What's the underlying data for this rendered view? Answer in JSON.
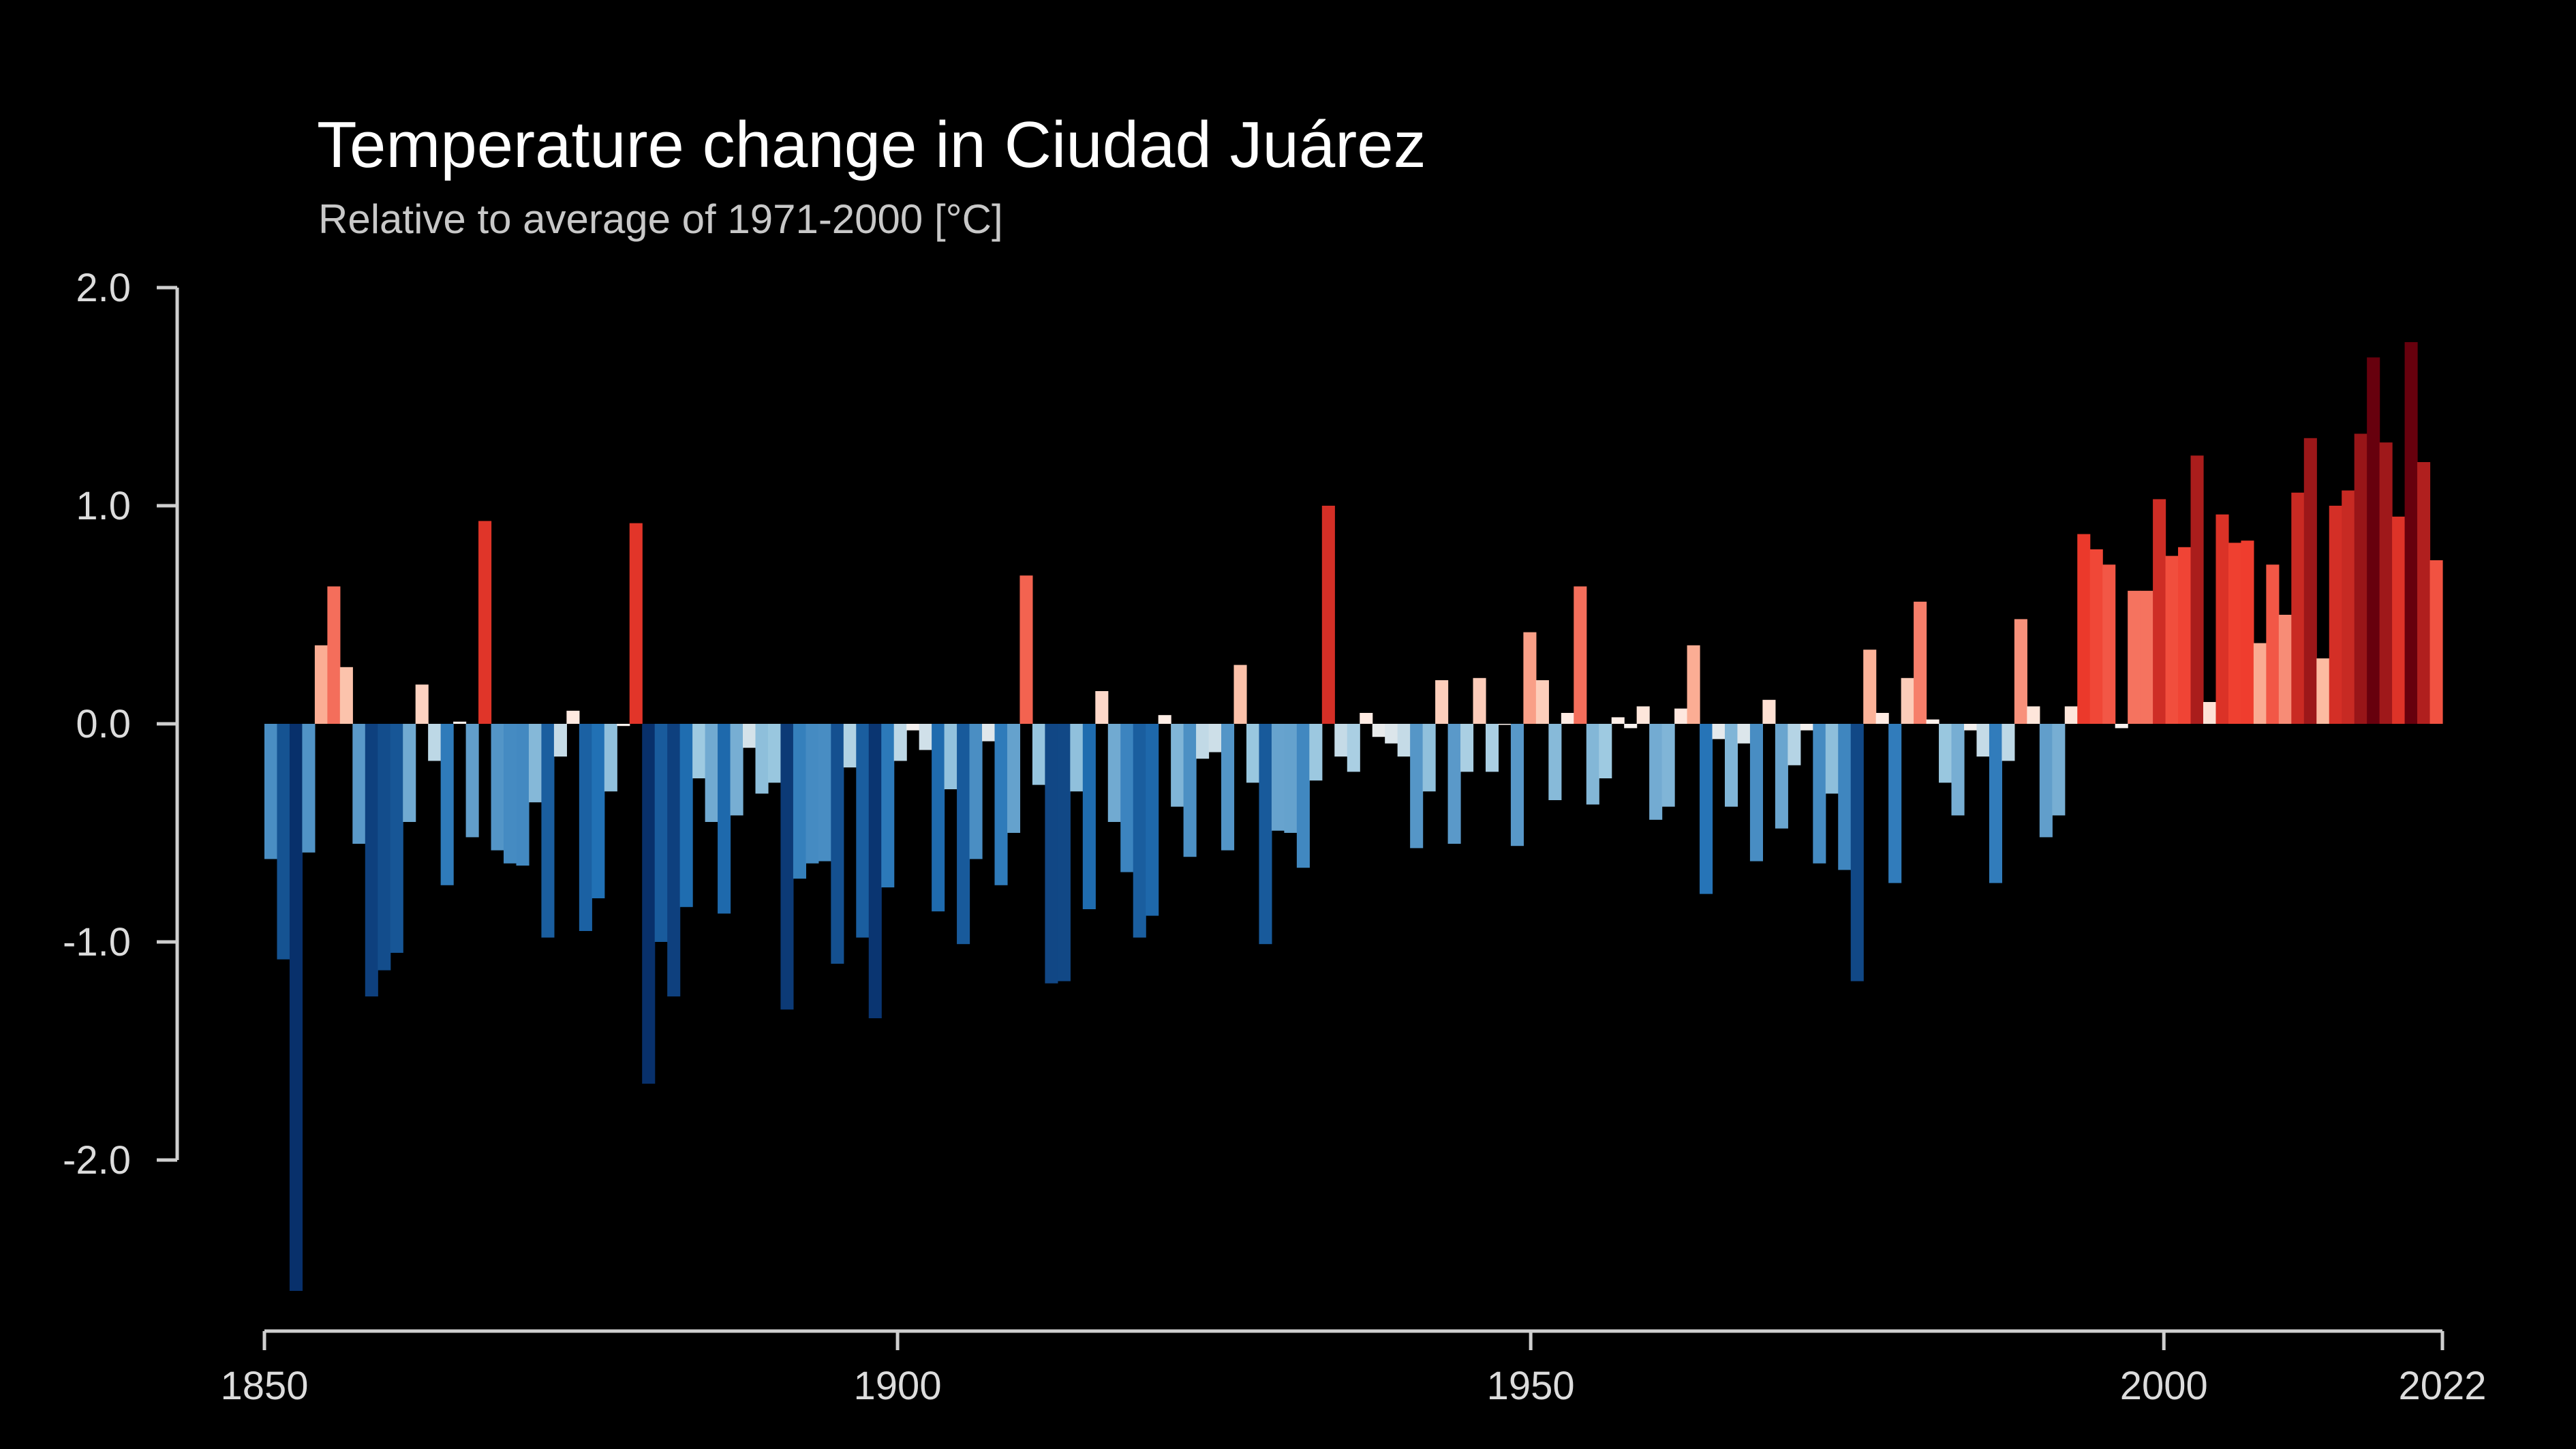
{
  "chart_data": {
    "type": "bar",
    "title": "Temperature change in Ciudad Juárez",
    "subtitle": "Relative to average of 1971-2000  [°C]",
    "xlim": [
      1850,
      2022
    ],
    "ylim": [
      -2.6,
      2.0
    ],
    "y_ticks": [
      2.0,
      1.0,
      0.0,
      -1.0,
      -2.0
    ],
    "y_tick_labels": [
      "2.0",
      "1.0",
      "0.0",
      "-1.0",
      "-2.0"
    ],
    "x_ticks": [
      1850,
      1900,
      1950,
      2000,
      2022
    ],
    "x_tick_labels": [
      "1850",
      "1900",
      "1950",
      "2000",
      "2022"
    ],
    "grid": false,
    "legend": "none",
    "color_scale": {
      "blue_dark": "#08306b",
      "blue_mid": "#2171b5",
      "blue_light": "#9ecae1",
      "neutral": "#fff5f0",
      "red_light": "#fcbba1",
      "red_mid": "#ef3b2c",
      "red_dark": "#67000d"
    },
    "x": [
      1850,
      1851,
      1852,
      1853,
      1854,
      1855,
      1856,
      1857,
      1858,
      1859,
      1860,
      1861,
      1862,
      1863,
      1864,
      1865,
      1866,
      1867,
      1868,
      1869,
      1870,
      1871,
      1872,
      1873,
      1874,
      1875,
      1876,
      1877,
      1878,
      1879,
      1880,
      1881,
      1882,
      1883,
      1884,
      1885,
      1886,
      1887,
      1888,
      1889,
      1890,
      1891,
      1892,
      1893,
      1894,
      1895,
      1896,
      1897,
      1898,
      1899,
      1900,
      1901,
      1902,
      1903,
      1904,
      1905,
      1906,
      1907,
      1908,
      1909,
      1910,
      1911,
      1912,
      1913,
      1914,
      1915,
      1916,
      1917,
      1918,
      1919,
      1920,
      1921,
      1922,
      1923,
      1924,
      1925,
      1926,
      1927,
      1928,
      1929,
      1930,
      1931,
      1932,
      1933,
      1934,
      1935,
      1936,
      1937,
      1938,
      1939,
      1940,
      1941,
      1942,
      1943,
      1944,
      1945,
      1946,
      1947,
      1948,
      1949,
      1950,
      1951,
      1952,
      1953,
      1954,
      1955,
      1956,
      1957,
      1958,
      1959,
      1960,
      1961,
      1962,
      1963,
      1964,
      1965,
      1966,
      1967,
      1968,
      1969,
      1970,
      1971,
      1972,
      1973,
      1974,
      1975,
      1976,
      1977,
      1978,
      1979,
      1980,
      1981,
      1982,
      1983,
      1984,
      1985,
      1986,
      1987,
      1988,
      1989,
      1990,
      1991,
      1992,
      1993,
      1994,
      1995,
      1996,
      1997,
      1998,
      1999,
      2000,
      2001,
      2002,
      2003,
      2004,
      2005,
      2006,
      2007,
      2008,
      2009,
      2010,
      2011,
      2012,
      2013,
      2014,
      2015,
      2016,
      2017,
      2018,
      2019,
      2020,
      2021,
      2022
    ],
    "values": [
      -0.62,
      -1.08,
      -2.6,
      -0.59,
      0.36,
      0.63,
      0.26,
      -0.55,
      -1.25,
      -1.13,
      -1.05,
      -0.45,
      0.18,
      -0.17,
      -0.74,
      0.01,
      -0.52,
      0.93,
      -0.58,
      -0.64,
      -0.65,
      -0.36,
      -0.98,
      -0.15,
      0.06,
      -0.95,
      -0.8,
      -0.31,
      -0.01,
      0.92,
      -1.65,
      -1.0,
      -1.25,
      -0.84,
      -0.25,
      -0.45,
      -0.87,
      -0.42,
      -0.11,
      -0.32,
      -0.27,
      -1.31,
      -0.71,
      -0.64,
      -0.63,
      -1.1,
      -0.2,
      -0.98,
      -1.35,
      -0.75,
      -0.17,
      -0.03,
      -0.12,
      -0.86,
      -0.3,
      -1.01,
      -0.62,
      -0.08,
      -0.74,
      -0.5,
      0.68,
      -0.28,
      -1.19,
      -1.18,
      -0.31,
      -0.85,
      0.15,
      -0.45,
      -0.68,
      -0.98,
      -0.88,
      0.04,
      -0.38,
      -0.61,
      -0.16,
      -0.13,
      -0.58,
      0.27,
      -0.27,
      -1.01,
      -0.49,
      -0.5,
      -0.66,
      -0.26,
      1.0,
      -0.15,
      -0.22,
      0.05,
      -0.06,
      -0.09,
      -0.15,
      -0.57,
      -0.31,
      0.2,
      -0.55,
      -0.22,
      0.21,
      -0.22,
      0.0,
      -0.56,
      0.42,
      0.2,
      -0.35,
      0.05,
      0.63,
      -0.37,
      -0.25,
      0.03,
      -0.02,
      0.08,
      -0.44,
      -0.38,
      0.07,
      0.36,
      -0.78,
      -0.07,
      -0.38,
      -0.09,
      -0.63,
      0.11,
      -0.48,
      -0.19,
      -0.03,
      -0.64,
      -0.32,
      -0.67,
      -1.18,
      0.34,
      0.05,
      -0.73,
      0.21,
      0.56,
      0.02,
      -0.27,
      -0.42,
      -0.03,
      -0.15,
      -0.73,
      -0.17,
      0.48,
      0.08,
      -0.52,
      -0.42,
      0.08,
      0.87,
      0.8,
      0.73,
      -0.02,
      0.61,
      0.61,
      1.03,
      0.77,
      0.81,
      1.23,
      0.1,
      0.96,
      0.83,
      0.84,
      0.37,
      0.73,
      0.5,
      1.06,
      1.31,
      0.3,
      1.0,
      1.07,
      1.33,
      1.68,
      1.29,
      0.95,
      1.75,
      1.2,
      0.75
    ]
  }
}
